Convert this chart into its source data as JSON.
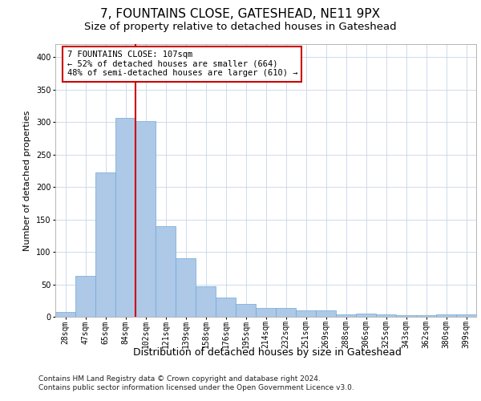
{
  "title": "7, FOUNTAINS CLOSE, GATESHEAD, NE11 9PX",
  "subtitle": "Size of property relative to detached houses in Gateshead",
  "xlabel": "Distribution of detached houses by size in Gateshead",
  "ylabel": "Number of detached properties",
  "categories": [
    "28sqm",
    "47sqm",
    "65sqm",
    "84sqm",
    "102sqm",
    "121sqm",
    "139sqm",
    "158sqm",
    "176sqm",
    "195sqm",
    "214sqm",
    "232sqm",
    "251sqm",
    "269sqm",
    "288sqm",
    "306sqm",
    "325sqm",
    "343sqm",
    "362sqm",
    "380sqm",
    "399sqm"
  ],
  "values": [
    8,
    63,
    222,
    306,
    302,
    140,
    90,
    47,
    30,
    20,
    14,
    13,
    10,
    10,
    4,
    5,
    4,
    2,
    3,
    4,
    4
  ],
  "bar_color": "#aec8e8",
  "bar_edgecolor": "#6aaad4",
  "vline_position": 3.5,
  "vline_color": "#cc0000",
  "annotation_line1": "7 FOUNTAINS CLOSE: 107sqm",
  "annotation_line2": "← 52% of detached houses are smaller (664)",
  "annotation_line3": "48% of semi-detached houses are larger (610) →",
  "annotation_box_facecolor": "#ffffff",
  "annotation_box_edgecolor": "#cc0000",
  "ylim": [
    0,
    420
  ],
  "yticks": [
    0,
    50,
    100,
    150,
    200,
    250,
    300,
    350,
    400
  ],
  "grid_color": "#c8d4e8",
  "background_color": "#ffffff",
  "footer_line1": "Contains HM Land Registry data © Crown copyright and database right 2024.",
  "footer_line2": "Contains public sector information licensed under the Open Government Licence v3.0.",
  "title_fontsize": 11,
  "subtitle_fontsize": 9.5,
  "xlabel_fontsize": 9,
  "ylabel_fontsize": 8,
  "tick_fontsize": 7,
  "annotation_fontsize": 7.5,
  "footer_fontsize": 6.5
}
